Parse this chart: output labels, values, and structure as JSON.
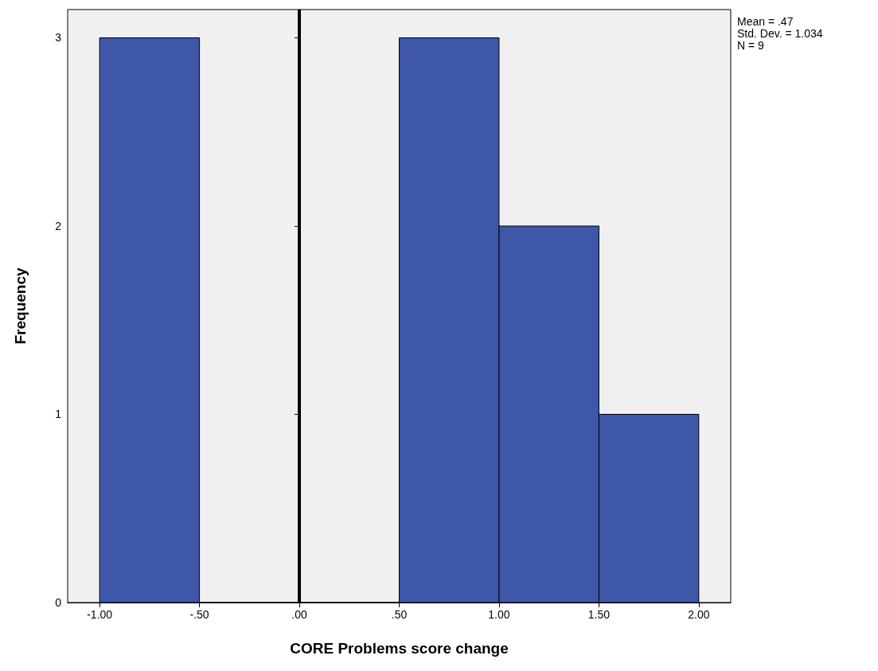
{
  "chart_data": {
    "type": "histogram",
    "xlabel": "CORE Problems score change",
    "ylabel": "Frequency",
    "bins": [
      -1,
      -0.5,
      0,
      0.5,
      1,
      1.5,
      2
    ],
    "values": [
      3,
      0,
      0,
      3,
      2,
      1
    ],
    "color": "#3f57a8",
    "xlim": [
      -1.16,
      2.16
    ],
    "xticks": [
      {
        "value": -1,
        "label": "-1.00"
      },
      {
        "value": -0.5,
        "label": "-.50"
      },
      {
        "value": 0,
        "label": ".00"
      },
      {
        "value": 0.5,
        "label": ".50"
      },
      {
        "value": 1,
        "label": "1.00"
      },
      {
        "value": 1.5,
        "label": "1.50"
      },
      {
        "value": 2,
        "label": "2.00"
      }
    ],
    "ylim": [
      0,
      3.15
    ],
    "yticks": [
      0,
      1,
      2,
      3
    ],
    "grid": false,
    "ref_lines": [
      {
        "axis": "x",
        "value": 0,
        "color": "#000000"
      }
    ],
    "annotations": [
      "Mean = .47",
      "Std. Dev. = 1.034",
      "N = 9"
    ]
  }
}
